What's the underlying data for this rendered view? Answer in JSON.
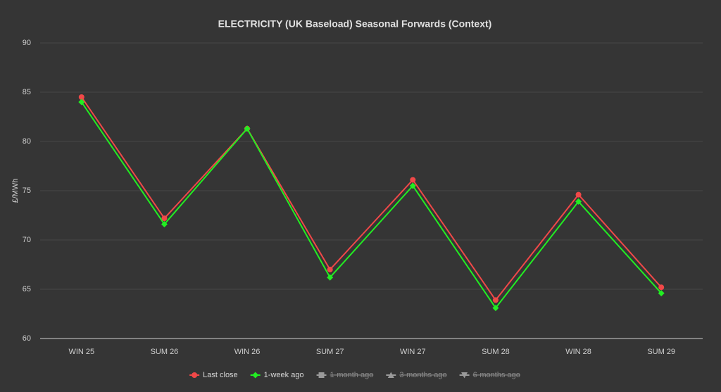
{
  "chart_data": {
    "type": "line",
    "title": "ELECTRICITY (UK Baseload) Seasonal Forwards (Context)",
    "y_label": "£/MWh",
    "categories": [
      "WIN 25",
      "SUM 26",
      "WIN 26",
      "SUM 27",
      "WIN 27",
      "SUM 28",
      "WIN 28",
      "SUM 29"
    ],
    "series": [
      {
        "name": "Last close",
        "color": "#f04848",
        "marker": "circle",
        "visible": true,
        "values": [
          84.5,
          72.2,
          81.3,
          67.0,
          76.1,
          63.9,
          74.6,
          65.2
        ]
      },
      {
        "name": "1-week ago",
        "color": "#22ee22",
        "marker": "diamond",
        "visible": true,
        "values": [
          84.0,
          71.6,
          81.3,
          66.2,
          75.5,
          63.1,
          73.9,
          64.6
        ]
      },
      {
        "name": "1-month ago",
        "color": "#aaaaaa",
        "marker": "square",
        "visible": false,
        "values": [
          null,
          null,
          null,
          null,
          null,
          null,
          null,
          null
        ]
      },
      {
        "name": "3-months ago",
        "color": "#aaaaaa",
        "marker": "triangle",
        "visible": false,
        "values": [
          null,
          null,
          null,
          null,
          null,
          null,
          null,
          null
        ]
      },
      {
        "name": "6-months ago",
        "color": "#aaaaaa",
        "marker": "triangle-down",
        "visible": false,
        "values": [
          null,
          null,
          null,
          null,
          null,
          null,
          null,
          null
        ]
      }
    ],
    "ylim": [
      60,
      90
    ],
    "yticks": [
      60,
      65,
      70,
      75,
      80,
      85,
      90
    ],
    "grid": true,
    "legend": "bottom"
  }
}
